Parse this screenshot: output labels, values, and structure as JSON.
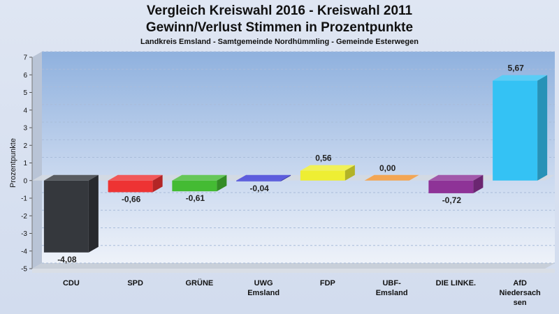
{
  "header": {
    "title_line1": "Vergleich Kreiswahl 2016 - Kreiswahl 2011",
    "title_line2": "Gewinn/Verlust Stimmen in Prozentpunkte",
    "subtitle": "Landkreis Emsland - Samtgemeinde Nordhümmling - Gemeinde Esterwegen"
  },
  "chart_data": {
    "type": "bar",
    "title": "Vergleich Kreiswahl 2016 - Kreiswahl 2011 Gewinn/Verlust Stimmen in Prozentpunkte",
    "subtitle": "Landkreis Emsland - Samtgemeinde Nordhümmling - Gemeinde Esterwegen",
    "ylabel": "Prozentpunkte",
    "xlabel": "",
    "ylim": [
      -5,
      7
    ],
    "yticks": [
      7,
      6,
      5,
      4,
      3,
      2,
      1,
      0,
      -1,
      -2,
      -3,
      -4,
      -5
    ],
    "grid": true,
    "categories": [
      [
        "CDU"
      ],
      [
        "SPD"
      ],
      [
        "GRÜNE"
      ],
      [
        "UWG",
        "Emsland"
      ],
      [
        "FDP"
      ],
      [
        "UBF-",
        "Emsland"
      ],
      [
        "DIE LINKE."
      ],
      [
        "AfD",
        "Niedersach",
        "sen"
      ]
    ],
    "values": [
      -4.08,
      -0.66,
      -0.61,
      -0.04,
      0.56,
      0.0,
      -0.72,
      5.67
    ],
    "value_labels": [
      "-4,08",
      "-0,66",
      "-0,61",
      "-0,04",
      "0,56",
      "0,00",
      "-0,72",
      "5,67"
    ],
    "colors": [
      "#35383d",
      "#ee3333",
      "#44bb33",
      "#3a3ad6",
      "#eeee33",
      "#f0922e",
      "#8e3397",
      "#34c2f4"
    ]
  }
}
